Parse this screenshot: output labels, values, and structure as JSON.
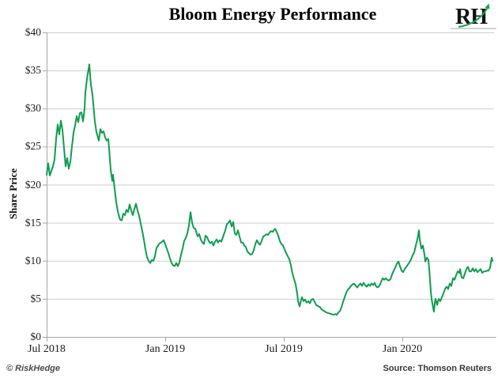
{
  "title": "Bloom Energy Performance",
  "logo": {
    "text": "RH"
  },
  "footer": {
    "copyright": "© RiskHedge",
    "source": "Source: Thomson Reuters"
  },
  "colors": {
    "line": "#0f9d4e",
    "logo_arrow": "#17a257",
    "logo_text": "#111111",
    "logo_rule": "#b7b7b7",
    "grid": "#cdcdcd",
    "axis": "#a6a6a6",
    "tick_text": "#1c1c1c",
    "background": "#ffffff"
  },
  "chart_data": {
    "type": "line",
    "title": "Bloom Energy Performance",
    "xlabel": "",
    "ylabel": "Share Price",
    "x_unit": "months since Jul 2018",
    "xlim": [
      0,
      22.64
    ],
    "ylim": [
      0,
      40
    ],
    "grid": true,
    "legend_position": "none",
    "x_ticks": [
      {
        "m": 0,
        "label": "Jul 2018"
      },
      {
        "m": 6,
        "label": "Jan 2019"
      },
      {
        "m": 12,
        "label": "Jul 2019"
      },
      {
        "m": 18,
        "label": "Jan 2020"
      }
    ],
    "y_ticks": [
      {
        "v": 40,
        "label": "$40"
      },
      {
        "v": 35,
        "label": "$35"
      },
      {
        "v": 30,
        "label": "$30"
      },
      {
        "v": 25,
        "label": "$25"
      },
      {
        "v": 20,
        "label": "$20"
      },
      {
        "v": 15,
        "label": "$15"
      },
      {
        "v": 10,
        "label": "$10"
      },
      {
        "v": 5,
        "label": "$5"
      },
      {
        "v": 0,
        "label": "$0"
      }
    ],
    "series": [
      {
        "name": "Bloom Energy share price (USD)",
        "points": [
          [
            0,
            21.3
          ],
          [
            0.08,
            22.8
          ],
          [
            0.16,
            21.2
          ],
          [
            0.24,
            21.8
          ],
          [
            0.32,
            22.4
          ],
          [
            0.4,
            23.3
          ],
          [
            0.48,
            26
          ],
          [
            0.56,
            27.9
          ],
          [
            0.64,
            26.6
          ],
          [
            0.72,
            28.4
          ],
          [
            0.8,
            27.2
          ],
          [
            0.88,
            24.8
          ],
          [
            0.96,
            22.4
          ],
          [
            1.04,
            23.5
          ],
          [
            1.12,
            22.1
          ],
          [
            1.2,
            23
          ],
          [
            1.28,
            25
          ],
          [
            1.36,
            26.8
          ],
          [
            1.44,
            27.8
          ],
          [
            1.52,
            29
          ],
          [
            1.6,
            28.2
          ],
          [
            1.68,
            29.4
          ],
          [
            1.76,
            29.5
          ],
          [
            1.84,
            28.3
          ],
          [
            1.92,
            30
          ],
          [
            1.96,
            32.1
          ],
          [
            2.04,
            33.9
          ],
          [
            2.16,
            35.8
          ],
          [
            2.24,
            33.1
          ],
          [
            2.32,
            31.8
          ],
          [
            2.44,
            28.3
          ],
          [
            2.52,
            26.9
          ],
          [
            2.64,
            25.8
          ],
          [
            2.72,
            27.3
          ],
          [
            2.8,
            26.8
          ],
          [
            2.88,
            27
          ],
          [
            2.96,
            26.2
          ],
          [
            3.04,
            25.8
          ],
          [
            3.12,
            26
          ],
          [
            3.16,
            24.8
          ],
          [
            3.24,
            22
          ],
          [
            3.32,
            20.5
          ],
          [
            3.36,
            21.3
          ],
          [
            3.44,
            19.5
          ],
          [
            3.52,
            17.7
          ],
          [
            3.6,
            16.5
          ],
          [
            3.68,
            15.7
          ],
          [
            3.72,
            15.4
          ],
          [
            3.8,
            15.3
          ],
          [
            3.88,
            16.2
          ],
          [
            3.96,
            16
          ],
          [
            4.04,
            16.7
          ],
          [
            4.12,
            16.4
          ],
          [
            4.2,
            17.4
          ],
          [
            4.28,
            16.6
          ],
          [
            4.36,
            16
          ],
          [
            4.44,
            16.8
          ],
          [
            4.52,
            17.5
          ],
          [
            4.6,
            16.6
          ],
          [
            4.68,
            15.9
          ],
          [
            4.76,
            14.9
          ],
          [
            4.84,
            13.9
          ],
          [
            4.92,
            12.8
          ],
          [
            5,
            11.5
          ],
          [
            5.08,
            10.5
          ],
          [
            5.16,
            10
          ],
          [
            5.24,
            9.7
          ],
          [
            5.32,
            10.1
          ],
          [
            5.4,
            10
          ],
          [
            5.48,
            10.6
          ],
          [
            5.56,
            11.7
          ],
          [
            5.64,
            12
          ],
          [
            5.72,
            12.3
          ],
          [
            5.8,
            12.4
          ],
          [
            5.88,
            12.6
          ],
          [
            5.92,
            12.7
          ],
          [
            6,
            12.2
          ],
          [
            6.08,
            11.6
          ],
          [
            6.16,
            11
          ],
          [
            6.24,
            10.3
          ],
          [
            6.32,
            9.7
          ],
          [
            6.4,
            9.4
          ],
          [
            6.48,
            9.3
          ],
          [
            6.56,
            9.7
          ],
          [
            6.64,
            9.3
          ],
          [
            6.72,
            9.8
          ],
          [
            6.8,
            10.8
          ],
          [
            6.88,
            11.6
          ],
          [
            6.96,
            12.6
          ],
          [
            7.04,
            13
          ],
          [
            7.12,
            13.6
          ],
          [
            7.2,
            14.6
          ],
          [
            7.28,
            16.4
          ],
          [
            7.36,
            15
          ],
          [
            7.44,
            14.3
          ],
          [
            7.52,
            14.2
          ],
          [
            7.56,
            13.9
          ],
          [
            7.64,
            13.2
          ],
          [
            7.72,
            13.5
          ],
          [
            7.8,
            12.8
          ],
          [
            7.88,
            12.4
          ],
          [
            7.96,
            12.2
          ],
          [
            8.04,
            13.3
          ],
          [
            8.12,
            13.1
          ],
          [
            8.2,
            12.6
          ],
          [
            8.28,
            12.3
          ],
          [
            8.36,
            12.5
          ],
          [
            8.44,
            12
          ],
          [
            8.52,
            12.5
          ],
          [
            8.6,
            12.8
          ],
          [
            8.68,
            12.4
          ],
          [
            8.76,
            12.7
          ],
          [
            8.84,
            12.5
          ],
          [
            8.96,
            13.4
          ],
          [
            9.04,
            14
          ],
          [
            9.12,
            14.8
          ],
          [
            9.2,
            15
          ],
          [
            9.28,
            15.3
          ],
          [
            9.36,
            14.5
          ],
          [
            9.44,
            15.1
          ],
          [
            9.52,
            13.6
          ],
          [
            9.6,
            13.4
          ],
          [
            9.68,
            14
          ],
          [
            9.76,
            13.2
          ],
          [
            9.84,
            12.4
          ],
          [
            9.92,
            12.4
          ],
          [
            10,
            12
          ],
          [
            10.08,
            11.8
          ],
          [
            10.16,
            11.2
          ],
          [
            10.24,
            11
          ],
          [
            10.32,
            10.8
          ],
          [
            10.4,
            10.9
          ],
          [
            10.48,
            11.4
          ],
          [
            10.56,
            12.2
          ],
          [
            10.64,
            12.7
          ],
          [
            10.72,
            12.3
          ],
          [
            10.8,
            12.1
          ],
          [
            10.88,
            12.6
          ],
          [
            10.96,
            13.2
          ],
          [
            11.04,
            13.3
          ],
          [
            11.12,
            13.5
          ],
          [
            11.2,
            13.4
          ],
          [
            11.28,
            13.7
          ],
          [
            11.36,
            13.9
          ],
          [
            11.44,
            13.8
          ],
          [
            11.52,
            14.1
          ],
          [
            11.56,
            14.2
          ],
          [
            11.64,
            13.8
          ],
          [
            11.72,
            13.3
          ],
          [
            11.8,
            12.6
          ],
          [
            11.88,
            12.2
          ],
          [
            11.96,
            12
          ],
          [
            12.04,
            11.5
          ],
          [
            12.12,
            11
          ],
          [
            12.2,
            10.6
          ],
          [
            12.28,
            10.2
          ],
          [
            12.36,
            9.4
          ],
          [
            12.44,
            8.3
          ],
          [
            12.52,
            7.6
          ],
          [
            12.6,
            6.9
          ],
          [
            12.64,
            6.3
          ],
          [
            12.68,
            5.7
          ],
          [
            12.72,
            4.7
          ],
          [
            12.8,
            4
          ],
          [
            12.88,
            4.9
          ],
          [
            12.92,
            5.2
          ],
          [
            13,
            4.7
          ],
          [
            13.08,
            4.9
          ],
          [
            13.16,
            4.5
          ],
          [
            13.24,
            4.7
          ],
          [
            13.32,
            4.4
          ],
          [
            13.4,
            4.9
          ],
          [
            13.48,
            5
          ],
          [
            13.56,
            4.6
          ],
          [
            13.64,
            4.2
          ],
          [
            13.76,
            4
          ],
          [
            13.84,
            3.9
          ],
          [
            13.92,
            3.6
          ],
          [
            14.04,
            3.4
          ],
          [
            14.16,
            3.2
          ],
          [
            14.28,
            3.1
          ],
          [
            14.4,
            3
          ],
          [
            14.52,
            2.9
          ],
          [
            14.6,
            3
          ],
          [
            14.68,
            2.9
          ],
          [
            14.76,
            3.2
          ],
          [
            14.84,
            3.4
          ],
          [
            14.92,
            3.9
          ],
          [
            15,
            4.6
          ],
          [
            15.08,
            5.2
          ],
          [
            15.16,
            5.8
          ],
          [
            15.24,
            6.2
          ],
          [
            15.32,
            6.4
          ],
          [
            15.4,
            6.7
          ],
          [
            15.48,
            6.9
          ],
          [
            15.56,
            7
          ],
          [
            15.64,
            6.7
          ],
          [
            15.72,
            6.5
          ],
          [
            15.8,
            6.8
          ],
          [
            15.88,
            7
          ],
          [
            15.96,
            6.7
          ],
          [
            16.04,
            7.1
          ],
          [
            16.12,
            6.8
          ],
          [
            16.2,
            6.6
          ],
          [
            16.28,
            6.9
          ],
          [
            16.36,
            6.7
          ],
          [
            16.44,
            7
          ],
          [
            16.52,
            6.8
          ],
          [
            16.6,
            7.1
          ],
          [
            16.68,
            6.6
          ],
          [
            16.76,
            6.5
          ],
          [
            16.84,
            6.7
          ],
          [
            16.92,
            7.2
          ],
          [
            17,
            7.7
          ],
          [
            17.08,
            7.5
          ],
          [
            17.16,
            7.7
          ],
          [
            17.24,
            7.5
          ],
          [
            17.32,
            7.4
          ],
          [
            17.4,
            7.6
          ],
          [
            17.48,
            8.2
          ],
          [
            17.56,
            8.7
          ],
          [
            17.64,
            9.1
          ],
          [
            17.72,
            9.6
          ],
          [
            17.8,
            9.9
          ],
          [
            17.88,
            9.3
          ],
          [
            17.96,
            8.7
          ],
          [
            18.04,
            8.5
          ],
          [
            18.12,
            8.9
          ],
          [
            18.2,
            9.2
          ],
          [
            18.28,
            9.5
          ],
          [
            18.36,
            9.8
          ],
          [
            18.44,
            10.2
          ],
          [
            18.52,
            10.7
          ],
          [
            18.6,
            11.1
          ],
          [
            18.68,
            12
          ],
          [
            18.76,
            12.8
          ],
          [
            18.84,
            14
          ],
          [
            18.88,
            12.8
          ],
          [
            18.96,
            11.6
          ],
          [
            19.04,
            12
          ],
          [
            19.12,
            10.8
          ],
          [
            19.16,
            9.9
          ],
          [
            19.24,
            10.4
          ],
          [
            19.32,
            10.1
          ],
          [
            19.36,
            8.9
          ],
          [
            19.44,
            6
          ],
          [
            19.48,
            5
          ],
          [
            19.56,
            3.8
          ],
          [
            19.6,
            3.3
          ],
          [
            19.64,
            4.4
          ],
          [
            19.68,
            5
          ],
          [
            19.76,
            4.2
          ],
          [
            19.84,
            5
          ],
          [
            19.92,
            4.7
          ],
          [
            20,
            5.2
          ],
          [
            20.08,
            5.7
          ],
          [
            20.16,
            6.3
          ],
          [
            20.24,
            6.6
          ],
          [
            20.32,
            6.3
          ],
          [
            20.4,
            7
          ],
          [
            20.48,
            6.7
          ],
          [
            20.56,
            7.7
          ],
          [
            20.64,
            7.5
          ],
          [
            20.72,
            8.1
          ],
          [
            20.8,
            8.6
          ],
          [
            20.88,
            8.4
          ],
          [
            20.92,
            8.9
          ],
          [
            21,
            7.8
          ],
          [
            21.08,
            7.7
          ],
          [
            21.16,
            8.3
          ],
          [
            21.24,
            8.9
          ],
          [
            21.32,
            9.2
          ],
          [
            21.4,
            8.6
          ],
          [
            21.48,
            8.6
          ],
          [
            21.56,
            9
          ],
          [
            21.64,
            8.6
          ],
          [
            21.72,
            8.9
          ],
          [
            21.8,
            8.5
          ],
          [
            21.88,
            8.7
          ],
          [
            21.96,
            8.9
          ],
          [
            22.04,
            8.4
          ],
          [
            22.12,
            8.6
          ],
          [
            22.2,
            8.6
          ],
          [
            22.28,
            8.7
          ],
          [
            22.36,
            8.7
          ],
          [
            22.44,
            9.1
          ],
          [
            22.52,
            10.4
          ],
          [
            22.56,
            10
          ]
        ]
      }
    ]
  }
}
